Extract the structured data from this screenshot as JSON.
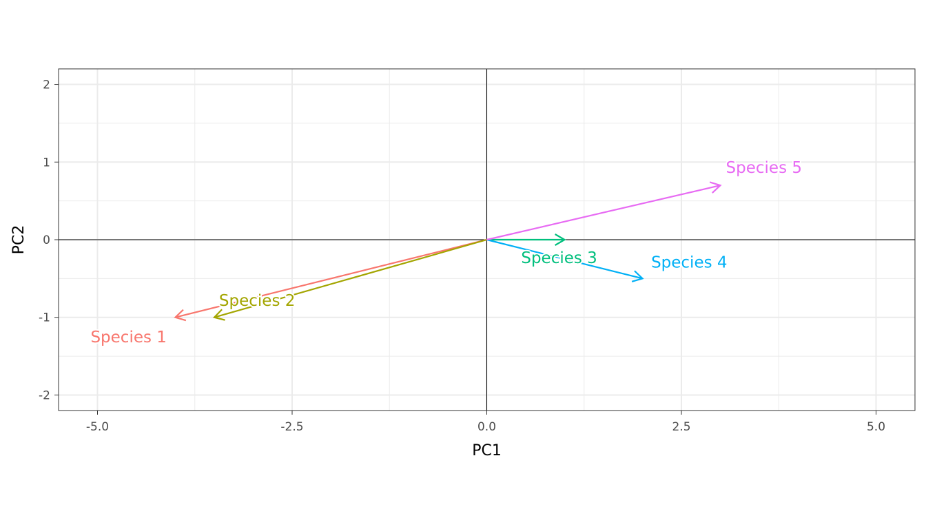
{
  "chart_data": {
    "type": "biplot",
    "xlabel": "PC1",
    "ylabel": "PC2",
    "xlim": [
      -5.5,
      5.5
    ],
    "ylim": [
      -2.2,
      2.2
    ],
    "x_ticks": [
      -5.0,
      -2.5,
      0.0,
      2.5,
      5.0
    ],
    "x_tick_labels": [
      "-5.0",
      "-2.5",
      "0.0",
      "2.5",
      "5.0"
    ],
    "y_ticks": [
      -2,
      -1,
      0,
      1,
      2
    ],
    "y_tick_labels": [
      "-2",
      "-1",
      "0",
      "1",
      "2"
    ],
    "grid": true,
    "reference_lines": {
      "x": 0,
      "y": 0
    },
    "series": [
      {
        "name": "Species 1",
        "x": -4.0,
        "y": -1.0,
        "label_x": -4.6,
        "label_y": -1.25,
        "color": "#F8766D"
      },
      {
        "name": "Species 2",
        "x": -3.5,
        "y": -1.0,
        "label_x": -2.95,
        "label_y": -0.78,
        "color": "#A3A500"
      },
      {
        "name": "Species 3",
        "x": 1.0,
        "y": 0.0,
        "label_x": 0.93,
        "label_y": -0.23,
        "color": "#00BF7D"
      },
      {
        "name": "Species 4",
        "x": 2.0,
        "y": -0.5,
        "label_x": 2.6,
        "label_y": -0.29,
        "color": "#00B0F6"
      },
      {
        "name": "Species 5",
        "x": 3.0,
        "y": 0.7,
        "label_x": 3.56,
        "label_y": 0.93,
        "color": "#E76BF3"
      }
    ]
  }
}
